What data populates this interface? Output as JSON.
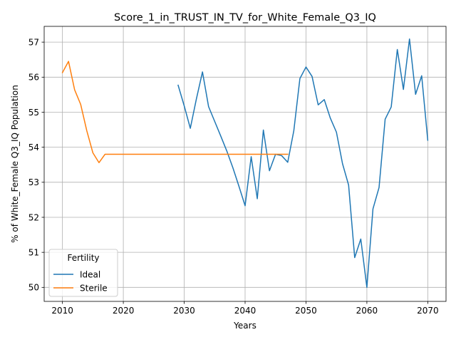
{
  "chart_data": {
    "type": "line",
    "title": "Score_1_in_TRUST_IN_TV_for_White_Female_Q3_IQ",
    "xlabel": "Years",
    "ylabel": "% of White_Female Q3_IQ Population",
    "xlim": [
      2007,
      2073
    ],
    "ylim": [
      49.6,
      57.45
    ],
    "xticks": [
      2010,
      2020,
      2030,
      2040,
      2050,
      2060,
      2070
    ],
    "yticks": [
      50,
      51,
      52,
      53,
      54,
      55,
      56,
      57
    ],
    "grid": true,
    "legend": {
      "title": "Fertility",
      "position": "lower-left"
    },
    "series": [
      {
        "name": "Ideal",
        "color": "#1f77b4",
        "x": [
          2029,
          2030,
          2031,
          2032,
          2033,
          2034,
          2035,
          2036,
          2037,
          2038,
          2039,
          2040,
          2041,
          2042,
          2043,
          2044,
          2045,
          2046,
          2047,
          2048,
          2049,
          2050,
          2051,
          2052,
          2053,
          2054,
          2055,
          2056,
          2057,
          2058,
          2059,
          2060,
          2061,
          2062,
          2063,
          2064,
          2065,
          2066,
          2067,
          2068,
          2069,
          2070
        ],
        "y": [
          55.77,
          55.18,
          54.54,
          55.38,
          56.15,
          55.16,
          54.74,
          54.32,
          53.89,
          53.41,
          52.88,
          52.33,
          53.73,
          52.53,
          54.49,
          53.33,
          53.8,
          53.76,
          53.57,
          54.47,
          55.96,
          56.29,
          56.02,
          55.21,
          55.36,
          54.83,
          54.43,
          53.53,
          52.92,
          50.85,
          51.38,
          50.0,
          52.24,
          52.85,
          54.8,
          55.15,
          56.79,
          55.65,
          57.09,
          55.51,
          56.04,
          54.2
        ]
      },
      {
        "name": "Sterile",
        "color": "#ff7f0e",
        "x": [
          2010,
          2011,
          2012,
          2013,
          2014,
          2015,
          2016,
          2017,
          2018,
          2019,
          2020,
          2021,
          2022,
          2023,
          2024,
          2025,
          2026,
          2027,
          2028,
          2029,
          2030,
          2031,
          2032,
          2033,
          2034,
          2035,
          2036,
          2037,
          2038,
          2039,
          2040,
          2041,
          2042,
          2043,
          2044,
          2045,
          2046,
          2047
        ],
        "y": [
          56.13,
          56.45,
          55.64,
          55.22,
          54.47,
          53.84,
          53.56,
          53.8,
          53.8,
          53.8,
          53.8,
          53.8,
          53.8,
          53.8,
          53.8,
          53.8,
          53.8,
          53.8,
          53.8,
          53.8,
          53.8,
          53.8,
          53.8,
          53.8,
          53.8,
          53.8,
          53.8,
          53.8,
          53.8,
          53.8,
          53.8,
          53.8,
          53.8,
          53.8,
          53.8,
          53.8,
          53.8,
          53.8
        ]
      }
    ]
  }
}
